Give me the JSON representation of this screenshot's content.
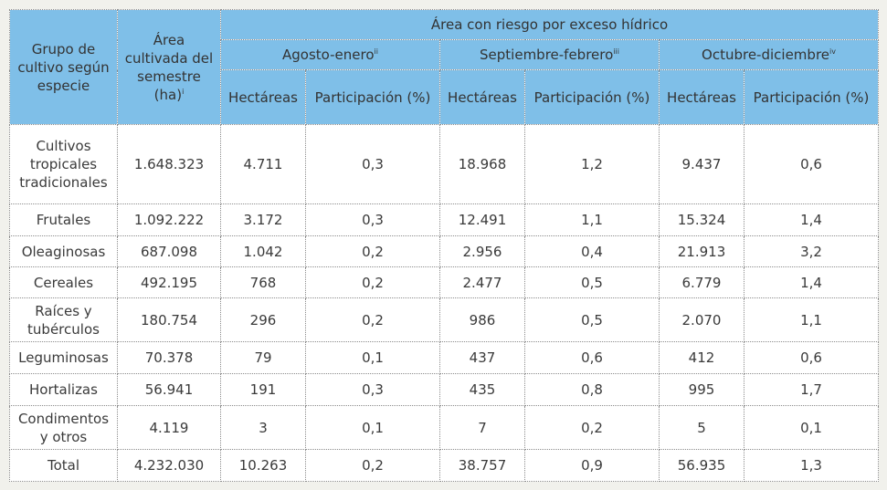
{
  "header": {
    "group_col": "Grupo de cultivo según especie",
    "area_col": "Área cultivada del semestre (ha)",
    "area_col_sup": "i",
    "risk_title": "Área con riesgo por exceso hídrico",
    "periods": [
      {
        "label": "Agosto-enero",
        "sup": "ii"
      },
      {
        "label": "Septiembre-febrero",
        "sup": "iii"
      },
      {
        "label": "Octubre-diciembre",
        "sup": "iv"
      }
    ],
    "sub_hectareas": "Hectáreas",
    "sub_participacion": "Participación (%)"
  },
  "rows": [
    {
      "group": "Cultivos tropicales tradicionales",
      "area": "1.648.323",
      "p1_ha": "4.711",
      "p1_pct": "0,3",
      "p2_ha": "18.968",
      "p2_pct": "1,2",
      "p3_ha": "9.437",
      "p3_pct": "0,6"
    },
    {
      "group": "Frutales",
      "area": "1.092.222",
      "p1_ha": "3.172",
      "p1_pct": "0,3",
      "p2_ha": "12.491",
      "p2_pct": "1,1",
      "p3_ha": "15.324",
      "p3_pct": "1,4"
    },
    {
      "group": "Oleaginosas",
      "area": "687.098",
      "p1_ha": "1.042",
      "p1_pct": "0,2",
      "p2_ha": "2.956",
      "p2_pct": "0,4",
      "p3_ha": "21.913",
      "p3_pct": "3,2"
    },
    {
      "group": "Cereales",
      "area": "492.195",
      "p1_ha": "768",
      "p1_pct": "0,2",
      "p2_ha": "2.477",
      "p2_pct": "0,5",
      "p3_ha": "6.779",
      "p3_pct": "1,4"
    },
    {
      "group": "Raíces y tubérculos",
      "area": "180.754",
      "p1_ha": "296",
      "p1_pct": "0,2",
      "p2_ha": "986",
      "p2_pct": "0,5",
      "p3_ha": "2.070",
      "p3_pct": "1,1"
    },
    {
      "group": "Leguminosas",
      "area": "70.378",
      "p1_ha": "79",
      "p1_pct": "0,1",
      "p2_ha": "437",
      "p2_pct": "0,6",
      "p3_ha": "412",
      "p3_pct": "0,6"
    },
    {
      "group": "Hortalizas",
      "area": "56.941",
      "p1_ha": "191",
      "p1_pct": "0,3",
      "p2_ha": "435",
      "p2_pct": "0,8",
      "p3_ha": "995",
      "p3_pct": "1,7"
    },
    {
      "group": "Condimentos y otros",
      "area": "4.119",
      "p1_ha": "3",
      "p1_pct": "0,1",
      "p2_ha": "7",
      "p2_pct": "0,2",
      "p3_ha": "5",
      "p3_pct": "0,1"
    },
    {
      "group": "Total",
      "area": "4.232.030",
      "p1_ha": "10.263",
      "p1_pct": "0,2",
      "p2_ha": "38.757",
      "p2_pct": "0,9",
      "p3_ha": "56.935",
      "p3_pct": "1,3"
    }
  ]
}
